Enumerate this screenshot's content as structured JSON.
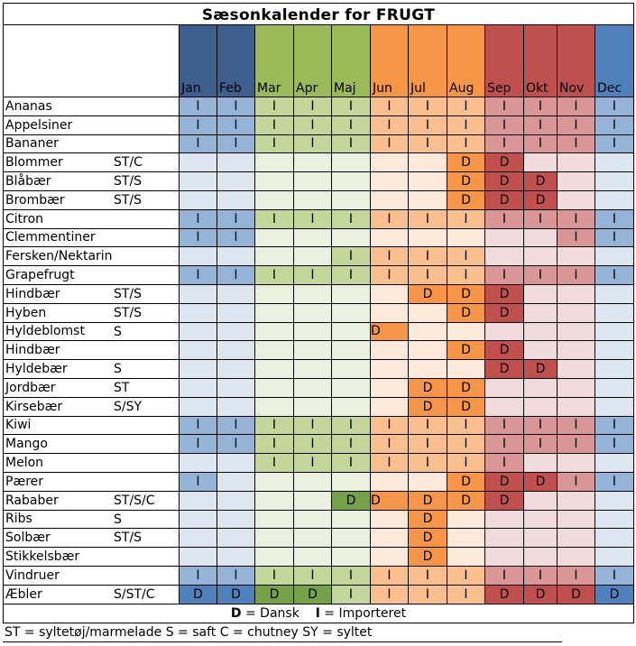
{
  "title": "Sæsonkalender for FRUGT",
  "months": [
    "Jan",
    "Feb",
    "Mar",
    "Apr",
    "Maj",
    "Jun",
    "Jul",
    "Aug",
    "Sep",
    "Okt",
    "Nov",
    "Dec"
  ],
  "season_colors": {
    "winter": {
      "header": "#3c5f8f",
      "light": "#dce6f1",
      "mid": "#95b3d7",
      "dark": "#4f81bd"
    },
    "spring": {
      "header": "#9bbb59",
      "light": "#ebf1de",
      "mid": "#c4d79b",
      "dark": "#76a146"
    },
    "summer": {
      "header": "#f79646",
      "light": "#fde9d9",
      "mid": "#fabf8f",
      "dark": "#f79646"
    },
    "autumn": {
      "header": "#c0504d",
      "light": "#f2dcdb",
      "mid": "#da9694",
      "dark": "#c0504d"
    },
    "dec": {
      "header": "#4f81bd",
      "light": "#dce6f1",
      "mid": "#95b3d7",
      "dark": "#4f81bd"
    }
  },
  "rows": [
    {
      "name": "Ananas",
      "code": "",
      "cells": [
        "I",
        "I",
        "I",
        "I",
        "I",
        "I",
        "I",
        "I",
        "I",
        "I",
        "I",
        "I"
      ]
    },
    {
      "name": "Appelsiner",
      "code": "",
      "cells": [
        "I",
        "I",
        "I",
        "I",
        "I",
        "I",
        "I",
        "I",
        "I",
        "I",
        "I",
        "I"
      ]
    },
    {
      "name": "Bananer",
      "code": "",
      "cells": [
        "I",
        "I",
        "I",
        "I",
        "I",
        "I",
        "I",
        "I",
        "I",
        "I",
        "I",
        "I"
      ]
    },
    {
      "name": "Blommer",
      "code": "ST/C",
      "cells": [
        "",
        "",
        "",
        "",
        "",
        "",
        "",
        "D",
        "D",
        "",
        "",
        ""
      ]
    },
    {
      "name": "Blåbær",
      "code": "ST/S",
      "cells": [
        "",
        "",
        "",
        "",
        "",
        "",
        "",
        "D",
        "D",
        "D",
        "",
        ""
      ]
    },
    {
      "name": "Brombær",
      "code": "ST/S",
      "cells": [
        "",
        "",
        "",
        "",
        "",
        "",
        "",
        "D",
        "D",
        "D",
        "",
        ""
      ]
    },
    {
      "name": "Citron",
      "code": "",
      "cells": [
        "I",
        "I",
        "I",
        "I",
        "I",
        "I",
        "I",
        "I",
        "I",
        "I",
        "I",
        "I"
      ]
    },
    {
      "name": "Clemmentiner",
      "code": "",
      "cells": [
        "I",
        "I",
        "",
        "",
        "",
        "",
        "",
        "",
        "",
        "",
        "I",
        "I"
      ]
    },
    {
      "name": "Fersken/Nektarin",
      "code": "",
      "cells": [
        "",
        "",
        "",
        "",
        "I",
        "I",
        "I",
        "I",
        "",
        "",
        "",
        ""
      ]
    },
    {
      "name": "Grapefrugt",
      "code": "",
      "cells": [
        "I",
        "I",
        "I",
        "I",
        "I",
        "I",
        "I",
        "I",
        "I",
        "I",
        "I",
        "I"
      ]
    },
    {
      "name": "Hindbær",
      "code": "ST/S",
      "cells": [
        "",
        "",
        "",
        "",
        "",
        "",
        "D",
        "D",
        "D",
        "",
        "",
        ""
      ]
    },
    {
      "name": "Hyben",
      "code": "ST/S",
      "cells": [
        "",
        "",
        "",
        "",
        "",
        "",
        "",
        "D",
        "D",
        "",
        "",
        ""
      ]
    },
    {
      "name": "Hyldeblomst",
      "code": "S",
      "cells": [
        "",
        "",
        "",
        "",
        "",
        "D",
        "",
        "",
        "",
        "",
        "",
        ""
      ]
    },
    {
      "name": "Hindbær",
      "code": "",
      "cells": [
        "",
        "",
        "",
        "",
        "",
        "",
        "",
        "D",
        "D",
        "",
        "",
        ""
      ]
    },
    {
      "name": "Hyldebær",
      "code": "S",
      "cells": [
        "",
        "",
        "",
        "",
        "",
        "",
        "",
        "",
        "D",
        "D",
        "",
        ""
      ]
    },
    {
      "name": "Jordbær",
      "code": "ST",
      "cells": [
        "",
        "",
        "",
        "",
        "",
        "",
        "D",
        "D",
        "",
        "",
        "",
        ""
      ]
    },
    {
      "name": "Kirsebær",
      "code": "S/SY",
      "cells": [
        "",
        "",
        "",
        "",
        "",
        "",
        "D",
        "D",
        "",
        "",
        "",
        ""
      ]
    },
    {
      "name": "Kiwi",
      "code": "",
      "cells": [
        "I",
        "I",
        "I",
        "I",
        "I",
        "I",
        "I",
        "I",
        "I",
        "I",
        "I",
        "I"
      ]
    },
    {
      "name": "Mango",
      "code": "",
      "cells": [
        "I",
        "I",
        "I",
        "I",
        "I",
        "I",
        "I",
        "I",
        "I",
        "I",
        "I",
        "I"
      ]
    },
    {
      "name": "Melon",
      "code": "",
      "cells": [
        "",
        "",
        "I",
        "I",
        "I",
        "I",
        "I",
        "I",
        "I",
        "",
        "",
        ""
      ]
    },
    {
      "name": "Pærer",
      "code": "",
      "cells": [
        "I",
        "",
        "",
        "",
        "",
        "",
        "",
        "D",
        "D",
        "D",
        "I",
        "I"
      ]
    },
    {
      "name": "Rababer",
      "code": "ST/S/C",
      "cells": [
        "",
        "",
        "",
        "",
        "D",
        "D",
        "D",
        "D",
        "D",
        "",
        "",
        ""
      ]
    },
    {
      "name": "Ribs",
      "code": "S",
      "cells": [
        "",
        "",
        "",
        "",
        "",
        "",
        "D",
        "",
        "",
        "",
        "",
        ""
      ]
    },
    {
      "name": "Solbær",
      "code": "ST/S",
      "cells": [
        "",
        "",
        "",
        "",
        "",
        "",
        "D",
        "",
        "",
        "",
        "",
        ""
      ]
    },
    {
      "name": "Stikkelsbær",
      "code": "",
      "cells": [
        "",
        "",
        "",
        "",
        "",
        "",
        "D",
        "",
        "",
        "",
        "",
        ""
      ]
    },
    {
      "name": "Vindruer",
      "code": "",
      "cells": [
        "I",
        "I",
        "I",
        "I",
        "I",
        "I",
        "I",
        "I",
        "I",
        "I",
        "I",
        "I"
      ]
    },
    {
      "name": "Æbler",
      "code": "S/ST/C",
      "cells": [
        "D",
        "D",
        "D",
        "D",
        "I",
        "I",
        "I",
        "I",
        "D",
        "D",
        "D",
        "D"
      ]
    }
  ],
  "legend": {
    "d_key": "D",
    "d_text": " = Dansk",
    "i_key": "I",
    "i_text": " = Importeret"
  },
  "legend2": "ST = syltetøj/marmelade S = saft C = chutney  SY = syltet"
}
